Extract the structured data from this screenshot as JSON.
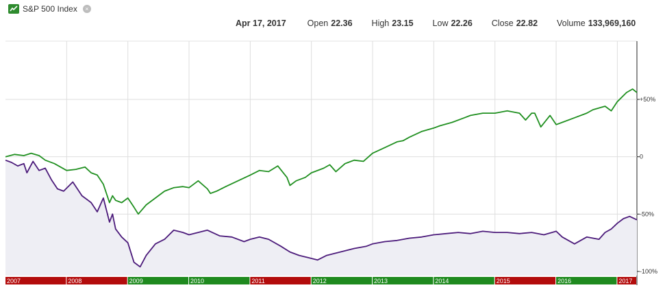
{
  "legend": {
    "label": "S&P 500 Index",
    "icon": "line-chart-icon",
    "close_icon": "close-circle-icon",
    "close_glyph": "×",
    "color": "#2e8b2e"
  },
  "quote": {
    "date": "Apr 17, 2017",
    "open_label": "Open",
    "open": "22.36",
    "high_label": "High",
    "high": "23.15",
    "low_label": "Low",
    "low": "22.26",
    "close_label": "Close",
    "close": "22.82",
    "volume_label": "Volume",
    "volume": "133,969,160"
  },
  "chart_data": {
    "type": "line",
    "x_unit": "year",
    "xlim": [
      2007.0,
      2017.32
    ],
    "ylim": [
      -100,
      95
    ],
    "grid": true,
    "y_ticks": [
      {
        "value": 50,
        "label": "+50%"
      },
      {
        "value": 0,
        "label": "0"
      },
      {
        "value": -50,
        "label": "-50%"
      },
      {
        "value": -100,
        "label": "-100%"
      }
    ],
    "year_bands": [
      {
        "year": "2007",
        "start": 2007.0,
        "end": 2008.0,
        "color": "#b30c0c"
      },
      {
        "year": "2008",
        "start": 2008.0,
        "end": 2009.0,
        "color": "#b30c0c"
      },
      {
        "year": "2009",
        "start": 2009.0,
        "end": 2010.0,
        "color": "#1f8a1f"
      },
      {
        "year": "2010",
        "start": 2010.0,
        "end": 2011.0,
        "color": "#1f8a1f"
      },
      {
        "year": "2011",
        "start": 2011.0,
        "end": 2012.0,
        "color": "#b30c0c"
      },
      {
        "year": "2012",
        "start": 2012.0,
        "end": 2013.0,
        "color": "#1f8a1f"
      },
      {
        "year": "2013",
        "start": 2013.0,
        "end": 2014.0,
        "color": "#1f8a1f"
      },
      {
        "year": "2014",
        "start": 2014.0,
        "end": 2015.0,
        "color": "#1f8a1f"
      },
      {
        "year": "2015",
        "start": 2015.0,
        "end": 2016.0,
        "color": "#b30c0c"
      },
      {
        "year": "2016",
        "start": 2016.0,
        "end": 2017.0,
        "color": "#1f8a1f"
      },
      {
        "year": "2017",
        "start": 2017.0,
        "end": 2017.32,
        "color": "#b30c0c"
      }
    ],
    "series": [
      {
        "color": "#1f8f1f",
        "x": [
          2007.0,
          2007.15,
          2007.3,
          2007.42,
          2007.55,
          2007.65,
          2007.8,
          2007.9,
          2008.0,
          2008.15,
          2008.3,
          2008.4,
          2008.5,
          2008.6,
          2008.7,
          2008.75,
          2008.8,
          2008.9,
          2009.0,
          2009.1,
          2009.17,
          2009.3,
          2009.45,
          2009.6,
          2009.75,
          2009.9,
          2010.0,
          2010.15,
          2010.3,
          2010.35,
          2010.45,
          2010.6,
          2010.8,
          2011.0,
          2011.15,
          2011.3,
          2011.45,
          2011.6,
          2011.65,
          2011.75,
          2011.9,
          2012.0,
          2012.2,
          2012.3,
          2012.4,
          2012.55,
          2012.7,
          2012.85,
          2013.0,
          2013.2,
          2013.4,
          2013.5,
          2013.6,
          2013.8,
          2014.0,
          2014.1,
          2014.3,
          2014.5,
          2014.6,
          2014.8,
          2015.0,
          2015.2,
          2015.4,
          2015.5,
          2015.6,
          2015.65,
          2015.75,
          2015.9,
          2016.0,
          2016.1,
          2016.3,
          2016.5,
          2016.6,
          2016.8,
          2016.9,
          2017.0,
          2017.15,
          2017.25,
          2017.32
        ],
        "values": [
          0,
          2,
          1,
          3,
          1,
          -3,
          -6,
          -9,
          -12,
          -11,
          -9,
          -14,
          -16,
          -24,
          -40,
          -34,
          -38,
          -40,
          -36,
          -44,
          -50,
          -42,
          -36,
          -30,
          -27,
          -26,
          -27,
          -21,
          -28,
          -32,
          -30,
          -26,
          -21,
          -16,
          -12,
          -13,
          -8,
          -18,
          -25,
          -21,
          -18,
          -14,
          -10,
          -7,
          -13,
          -6,
          -3,
          -4,
          3,
          8,
          13,
          14,
          17,
          22,
          25,
          27,
          30,
          34,
          36,
          38,
          38,
          40,
          38,
          32,
          38,
          38,
          26,
          36,
          28,
          30,
          34,
          38,
          41,
          44,
          40,
          48,
          56,
          59,
          56
        ]
      },
      {
        "color": "#4b1a7a",
        "x": [
          2007.0,
          2007.1,
          2007.2,
          2007.3,
          2007.35,
          2007.45,
          2007.55,
          2007.65,
          2007.75,
          2007.85,
          2007.95,
          2008.1,
          2008.25,
          2008.4,
          2008.5,
          2008.6,
          2008.7,
          2008.75,
          2008.8,
          2008.9,
          2009.0,
          2009.1,
          2009.2,
          2009.3,
          2009.45,
          2009.6,
          2009.75,
          2009.9,
          2010.0,
          2010.15,
          2010.3,
          2010.5,
          2010.7,
          2010.9,
          2011.0,
          2011.15,
          2011.3,
          2011.5,
          2011.65,
          2011.8,
          2011.95,
          2012.1,
          2012.25,
          2012.4,
          2012.55,
          2012.7,
          2012.9,
          2013.0,
          2013.2,
          2013.4,
          2013.6,
          2013.8,
          2014.0,
          2014.2,
          2014.4,
          2014.6,
          2014.8,
          2015.0,
          2015.2,
          2015.4,
          2015.6,
          2015.8,
          2016.0,
          2016.1,
          2016.3,
          2016.5,
          2016.7,
          2016.8,
          2016.9,
          2017.0,
          2017.1,
          2017.2,
          2017.32
        ],
        "values": [
          -3,
          -5,
          -8,
          -6,
          -14,
          -4,
          -12,
          -10,
          -20,
          -28,
          -30,
          -22,
          -34,
          -40,
          -48,
          -36,
          -57,
          -50,
          -63,
          -70,
          -75,
          -92,
          -96,
          -86,
          -76,
          -72,
          -64,
          -66,
          -68,
          -66,
          -64,
          -69,
          -70,
          -74,
          -72,
          -70,
          -72,
          -78,
          -83,
          -86,
          -88,
          -90,
          -86,
          -84,
          -82,
          -80,
          -78,
          -76,
          -74,
          -73,
          -71,
          -70,
          -68,
          -67,
          -66,
          -67,
          -65,
          -66,
          -66,
          -67,
          -66,
          -68,
          -65,
          -70,
          -76,
          -70,
          -72,
          -66,
          -63,
          -58,
          -54,
          -52,
          -55
        ]
      }
    ]
  }
}
